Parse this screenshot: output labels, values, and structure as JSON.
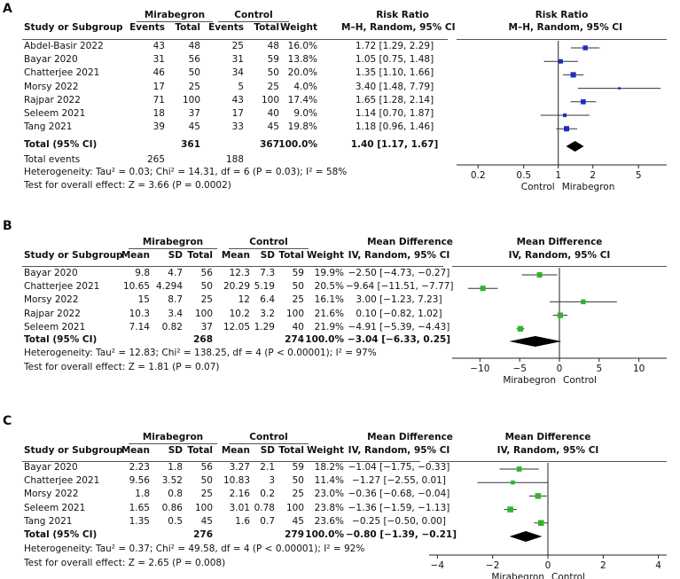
{
  "chart_data": [
    {
      "panel": "A",
      "type": "forest",
      "measure": "Risk Ratio",
      "method": "M–H, Random, 95% CI",
      "group1": "Mirabegron",
      "group2": "Control",
      "columns": [
        "Study or Subgroup",
        "Events",
        "Total",
        "Events",
        "Total",
        "Weight",
        "Risk Ratio"
      ],
      "studies": [
        {
          "name": "Abdel-Basir 2022",
          "e1": "43",
          "n1": "48",
          "e2": "25",
          "n2": "48",
          "weight": "16.0%",
          "est": 1.72,
          "lo": 1.29,
          "hi": 2.29,
          "ci": "1.72 [1.29, 2.29]"
        },
        {
          "name": "Bayar 2020",
          "e1": "31",
          "n1": "56",
          "e2": "31",
          "n2": "59",
          "weight": "13.8%",
          "est": 1.05,
          "lo": 0.75,
          "hi": 1.48,
          "ci": "1.05 [0.75, 1.48]"
        },
        {
          "name": "Chatterjee 2021",
          "e1": "46",
          "n1": "50",
          "e2": "34",
          "n2": "50",
          "weight": "20.0%",
          "est": 1.35,
          "lo": 1.1,
          "hi": 1.66,
          "ci": "1.35 [1.10, 1.66]"
        },
        {
          "name": "Morsy 2022",
          "e1": "17",
          "n1": "25",
          "e2": "5",
          "n2": "25",
          "weight": "4.0%",
          "est": 3.4,
          "lo": 1.48,
          "hi": 7.79,
          "ci": "3.40 [1.48, 7.79]"
        },
        {
          "name": "Rajpar 2022",
          "e1": "71",
          "n1": "100",
          "e2": "43",
          "n2": "100",
          "weight": "17.4%",
          "est": 1.65,
          "lo": 1.28,
          "hi": 2.14,
          "ci": "1.65 [1.28, 2.14]"
        },
        {
          "name": "Seleem 2021",
          "e1": "18",
          "n1": "37",
          "e2": "17",
          "n2": "40",
          "weight": "9.0%",
          "est": 1.14,
          "lo": 0.7,
          "hi": 1.87,
          "ci": "1.14 [0.70, 1.87]"
        },
        {
          "name": "Tang 2021",
          "e1": "39",
          "n1": "45",
          "e2": "33",
          "n2": "45",
          "weight": "19.8%",
          "est": 1.18,
          "lo": 0.96,
          "hi": 1.46,
          "ci": "1.18 [0.96, 1.46]"
        }
      ],
      "total": {
        "label": "Total (95% CI)",
        "n1": "361",
        "n2": "367",
        "weight": "100.0%",
        "est": 1.4,
        "lo": 1.17,
        "hi": 1.67,
        "ci": "1.40 [1.17, 1.67]"
      },
      "events_label": "Total events",
      "events1": "265",
      "events2": "188",
      "heterogeneity": "Heterogeneity: Tau² = 0.03; Chi² = 14.31, df = 6 (P = 0.03); I² = 58%",
      "overall": "Test for overall effect: Z = 3.66 (P = 0.0002)",
      "scale": "log",
      "xlim": [
        0.13,
        8.8
      ],
      "null": 1,
      "ticks": [
        {
          "v": 0.2,
          "l": "0.2"
        },
        {
          "v": 0.5,
          "l": "0.5"
        },
        {
          "v": 1,
          "l": "1"
        },
        {
          "v": 2,
          "l": "2"
        },
        {
          "v": 5,
          "l": "5"
        }
      ],
      "left_label": "Control",
      "right_label": "Mirabegron",
      "marker_color": "#1d2fbf"
    },
    {
      "panel": "B",
      "type": "forest",
      "measure": "Mean Difference",
      "method": "IV, Random, 95% CI",
      "group1": "Mirabegron",
      "group2": "Control",
      "columns": [
        "Study or Subgroup",
        "Mean",
        "SD",
        "Total",
        "Mean",
        "SD",
        "Total",
        "Weight",
        "Mean Difference"
      ],
      "studies": [
        {
          "name": "Bayar 2020",
          "m1": "9.8",
          "sd1": "4.7",
          "n1": "56",
          "m2": "12.3",
          "sd2": "7.3",
          "n2": "59",
          "weight": "19.9%",
          "est": -2.5,
          "lo": -4.73,
          "hi": -0.27,
          "ci": "−2.50 [−4.73, −0.27]"
        },
        {
          "name": "Chatterjee 2021",
          "m1": "10.65",
          "sd1": "4.294",
          "n1": "50",
          "m2": "20.29",
          "sd2": "5.19",
          "n2": "50",
          "weight": "20.5%",
          "est": -9.64,
          "lo": -11.51,
          "hi": -7.77,
          "ci": "−9.64 [−11.51, −7.77]"
        },
        {
          "name": "Morsy 2022",
          "m1": "15",
          "sd1": "8.7",
          "n1": "25",
          "m2": "12",
          "sd2": "6.4",
          "n2": "25",
          "weight": "16.1%",
          "est": 3.0,
          "lo": -1.23,
          "hi": 7.23,
          "ci": "3.00 [−1.23, 7.23]"
        },
        {
          "name": "Rajpar 2022",
          "m1": "10.3",
          "sd1": "3.4",
          "n1": "100",
          "m2": "10.2",
          "sd2": "3.2",
          "n2": "100",
          "weight": "21.6%",
          "est": 0.1,
          "lo": -0.82,
          "hi": 1.02,
          "ci": "0.10 [−0.82, 1.02]"
        },
        {
          "name": "Seleem 2021",
          "m1": "7.14",
          "sd1": "0.82",
          "n1": "37",
          "m2": "12.05",
          "sd2": "1.29",
          "n2": "40",
          "weight": "21.9%",
          "est": -4.91,
          "lo": -5.39,
          "hi": -4.43,
          "ci": "−4.91 [−5.39, −4.43]"
        }
      ],
      "total": {
        "label": "Total (95% CI)",
        "n1": "268",
        "n2": "274",
        "weight": "100.0%",
        "est": -3.04,
        "lo": -6.33,
        "hi": 0.25,
        "ci": "−3.04 [−6.33, 0.25]"
      },
      "heterogeneity": "Heterogeneity: Tau² = 12.83; Chi² = 138.25, df = 4 (P < 0.00001); I² = 97%",
      "overall": "Test for overall effect: Z = 1.81 (P = 0.07)",
      "scale": "linear",
      "xlim": [
        -13.5,
        13.5
      ],
      "null": 0,
      "ticks": [
        {
          "v": -10,
          "l": "−10"
        },
        {
          "v": -5,
          "l": "−5"
        },
        {
          "v": 0,
          "l": "0"
        },
        {
          "v": 5,
          "l": "5"
        },
        {
          "v": 10,
          "l": "10"
        }
      ],
      "left_label": "Mirabegron",
      "right_label": "Control",
      "marker_color": "#2db52d"
    },
    {
      "panel": "C",
      "type": "forest",
      "measure": "Mean Difference",
      "method": "IV, Random, 95% CI",
      "group1": "Mirabegron",
      "group2": "Control",
      "columns": [
        "Study or Subgroup",
        "Mean",
        "SD",
        "Total",
        "Mean",
        "SD",
        "Total",
        "Weight",
        "Mean Difference"
      ],
      "studies": [
        {
          "name": "Bayar 2020",
          "m1": "2.23",
          "sd1": "1.8",
          "n1": "56",
          "m2": "3.27",
          "sd2": "2.1",
          "n2": "59",
          "weight": "18.2%",
          "est": -1.04,
          "lo": -1.75,
          "hi": -0.33,
          "ci": "−1.04 [−1.75, −0.33]"
        },
        {
          "name": "Chatterjee 2021",
          "m1": "9.56",
          "sd1": "3.52",
          "n1": "50",
          "m2": "10.83",
          "sd2": "3",
          "n2": "50",
          "weight": "11.4%",
          "est": -1.27,
          "lo": -2.55,
          "hi": 0.01,
          "ci": "−1.27 [−2.55, 0.01]"
        },
        {
          "name": "Morsy 2022",
          "m1": "1.8",
          "sd1": "0.8",
          "n1": "25",
          "m2": "2.16",
          "sd2": "0.2",
          "n2": "25",
          "weight": "23.0%",
          "est": -0.36,
          "lo": -0.68,
          "hi": -0.04,
          "ci": "−0.36 [−0.68, −0.04]"
        },
        {
          "name": "Seleem 2021",
          "m1": "1.65",
          "sd1": "0.86",
          "n1": "100",
          "m2": "3.01",
          "sd2": "0.78",
          "n2": "100",
          "weight": "23.8%",
          "est": -1.36,
          "lo": -1.59,
          "hi": -1.13,
          "ci": "−1.36 [−1.59, −1.13]"
        },
        {
          "name": "Tang 2021",
          "m1": "1.35",
          "sd1": "0.5",
          "n1": "45",
          "m2": "1.6",
          "sd2": "0.7",
          "n2": "45",
          "weight": "23.6%",
          "est": -0.25,
          "lo": -0.5,
          "hi": 0.0,
          "ci": "−0.25 [−0.50, 0.00]"
        }
      ],
      "total": {
        "label": "Total (95% CI)",
        "n1": "276",
        "n2": "279",
        "weight": "100.0%",
        "est": -0.8,
        "lo": -1.39,
        "hi": -0.21,
        "ci": "−0.80 [−1.39, −0.21]"
      },
      "heterogeneity": "Heterogeneity: Tau² = 0.37; Chi² = 49.58, df = 4 (P < 0.00001); I² = 92%",
      "overall": "Test for overall effect: Z = 2.65 (P = 0.008)",
      "scale": "linear",
      "xlim": [
        -4.3,
        4.3
      ],
      "null": 0,
      "ticks": [
        {
          "v": -4,
          "l": "−4"
        },
        {
          "v": -2,
          "l": "−2"
        },
        {
          "v": 0,
          "l": "0"
        },
        {
          "v": 2,
          "l": "2"
        },
        {
          "v": 4,
          "l": "4"
        }
      ],
      "left_label": "Mirabegron",
      "right_label": "Control",
      "marker_color": "#2db52d"
    }
  ]
}
